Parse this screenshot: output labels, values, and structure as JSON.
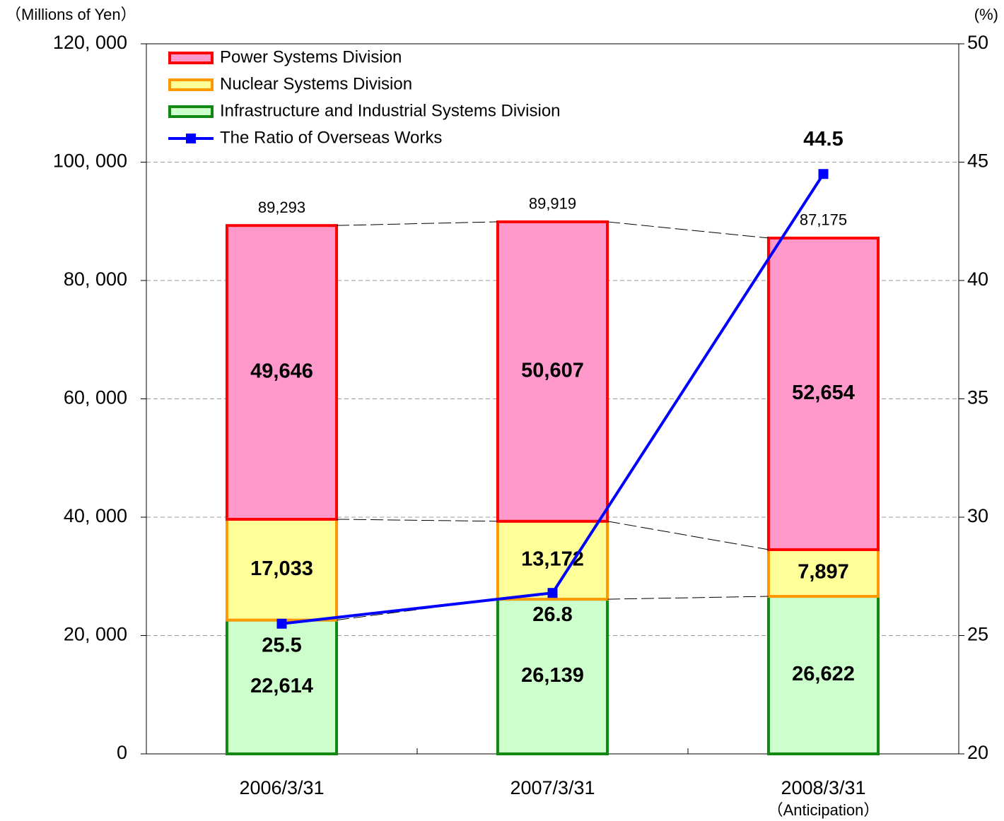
{
  "chart_data": {
    "type": "bar",
    "y_label": "（Millions of Yen）",
    "y2_label": "(%)",
    "categories": [
      "2006/3/31",
      "2007/3/31",
      "2008/3/31"
    ],
    "annotation": "（Anticipation）",
    "series": [
      {
        "name": "Power Systems Division",
        "color": "#ff99cc",
        "edge": "#ff0000",
        "values": [
          49646,
          50607,
          52654
        ],
        "value_labels": [
          "49,646",
          "50,607",
          "52,654"
        ]
      },
      {
        "name": "Nuclear Systems Division",
        "color": "#ffff99",
        "edge": "#ff9900",
        "values": [
          17033,
          13172,
          7897
        ],
        "value_labels": [
          "17,033",
          "13,172",
          "7,897"
        ]
      },
      {
        "name": "Infrastructure and Industrial Systems Division",
        "color": "#ccffcc",
        "edge": "#118811",
        "values": [
          22614,
          26139,
          26622
        ],
        "value_labels": [
          "22,614",
          "26,139",
          "26,622"
        ]
      },
      {
        "name": "The Ratio of Overseas Works",
        "type": "line",
        "axis": "y2",
        "color": "#0000ff",
        "values": [
          25.5,
          26.8,
          44.5
        ]
      }
    ],
    "totals": [
      89293,
      89919,
      87175
    ],
    "total_labels": [
      "89,293",
      "89,919",
      "87,175"
    ],
    "ylim": [
      0,
      120000
    ],
    "yticks": [
      0,
      {
        "value": 20000,
        "label": "20, 000"
      },
      {
        "value": 40000,
        "label": "40, 000"
      },
      {
        "value": 60000,
        "label": "60, 000"
      },
      {
        "value": 80000,
        "label": "80, 000"
      },
      {
        "value": 100000,
        "label": "100, 000"
      },
      {
        "value": 120000,
        "label": "120, 000"
      }
    ],
    "y2lim": [
      20,
      50
    ],
    "y2ticks": [
      20,
      25,
      30,
      35,
      40,
      45,
      50
    ],
    "grid": true,
    "legend": "upper left"
  }
}
